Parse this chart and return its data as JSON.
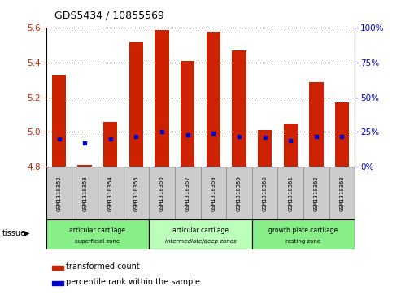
{
  "title": "GDS5434 / 10855569",
  "samples": [
    "GSM1310352",
    "GSM1310353",
    "GSM1310354",
    "GSM1310355",
    "GSM1310356",
    "GSM1310357",
    "GSM1310358",
    "GSM1310359",
    "GSM1310360",
    "GSM1310361",
    "GSM1310362",
    "GSM1310363"
  ],
  "bar_values": [
    5.33,
    4.81,
    5.06,
    5.52,
    5.59,
    5.41,
    5.58,
    5.47,
    5.01,
    5.05,
    5.29,
    5.17
  ],
  "percentile_values": [
    20,
    17,
    20,
    22,
    25,
    23,
    24,
    22,
    21,
    19,
    22,
    22
  ],
  "bar_bottom": 4.8,
  "ylim_left": [
    4.8,
    5.6
  ],
  "ylim_right": [
    0,
    100
  ],
  "yticks_left": [
    4.8,
    5.0,
    5.2,
    5.4,
    5.6
  ],
  "yticks_right": [
    0,
    25,
    50,
    75,
    100
  ],
  "bar_color": "#cc2200",
  "percentile_color": "#0000cc",
  "tissue_groups": [
    {
      "label": "articular cartilage\nsuperficial zone",
      "start": 0,
      "end": 4,
      "color": "#88ee88"
    },
    {
      "label": "articular cartilage\nintermediate/deep zones",
      "start": 4,
      "end": 8,
      "color": "#bbffbb"
    },
    {
      "label": "growth plate cartilage\nresting zone",
      "start": 8,
      "end": 12,
      "color": "#88ee88"
    }
  ],
  "tissue_label": "tissue",
  "legend_red": "transformed count",
  "legend_blue": "percentile rank within the sample",
  "bar_width": 0.55,
  "cell_color": "#cccccc",
  "plot_bg": "#ffffff"
}
